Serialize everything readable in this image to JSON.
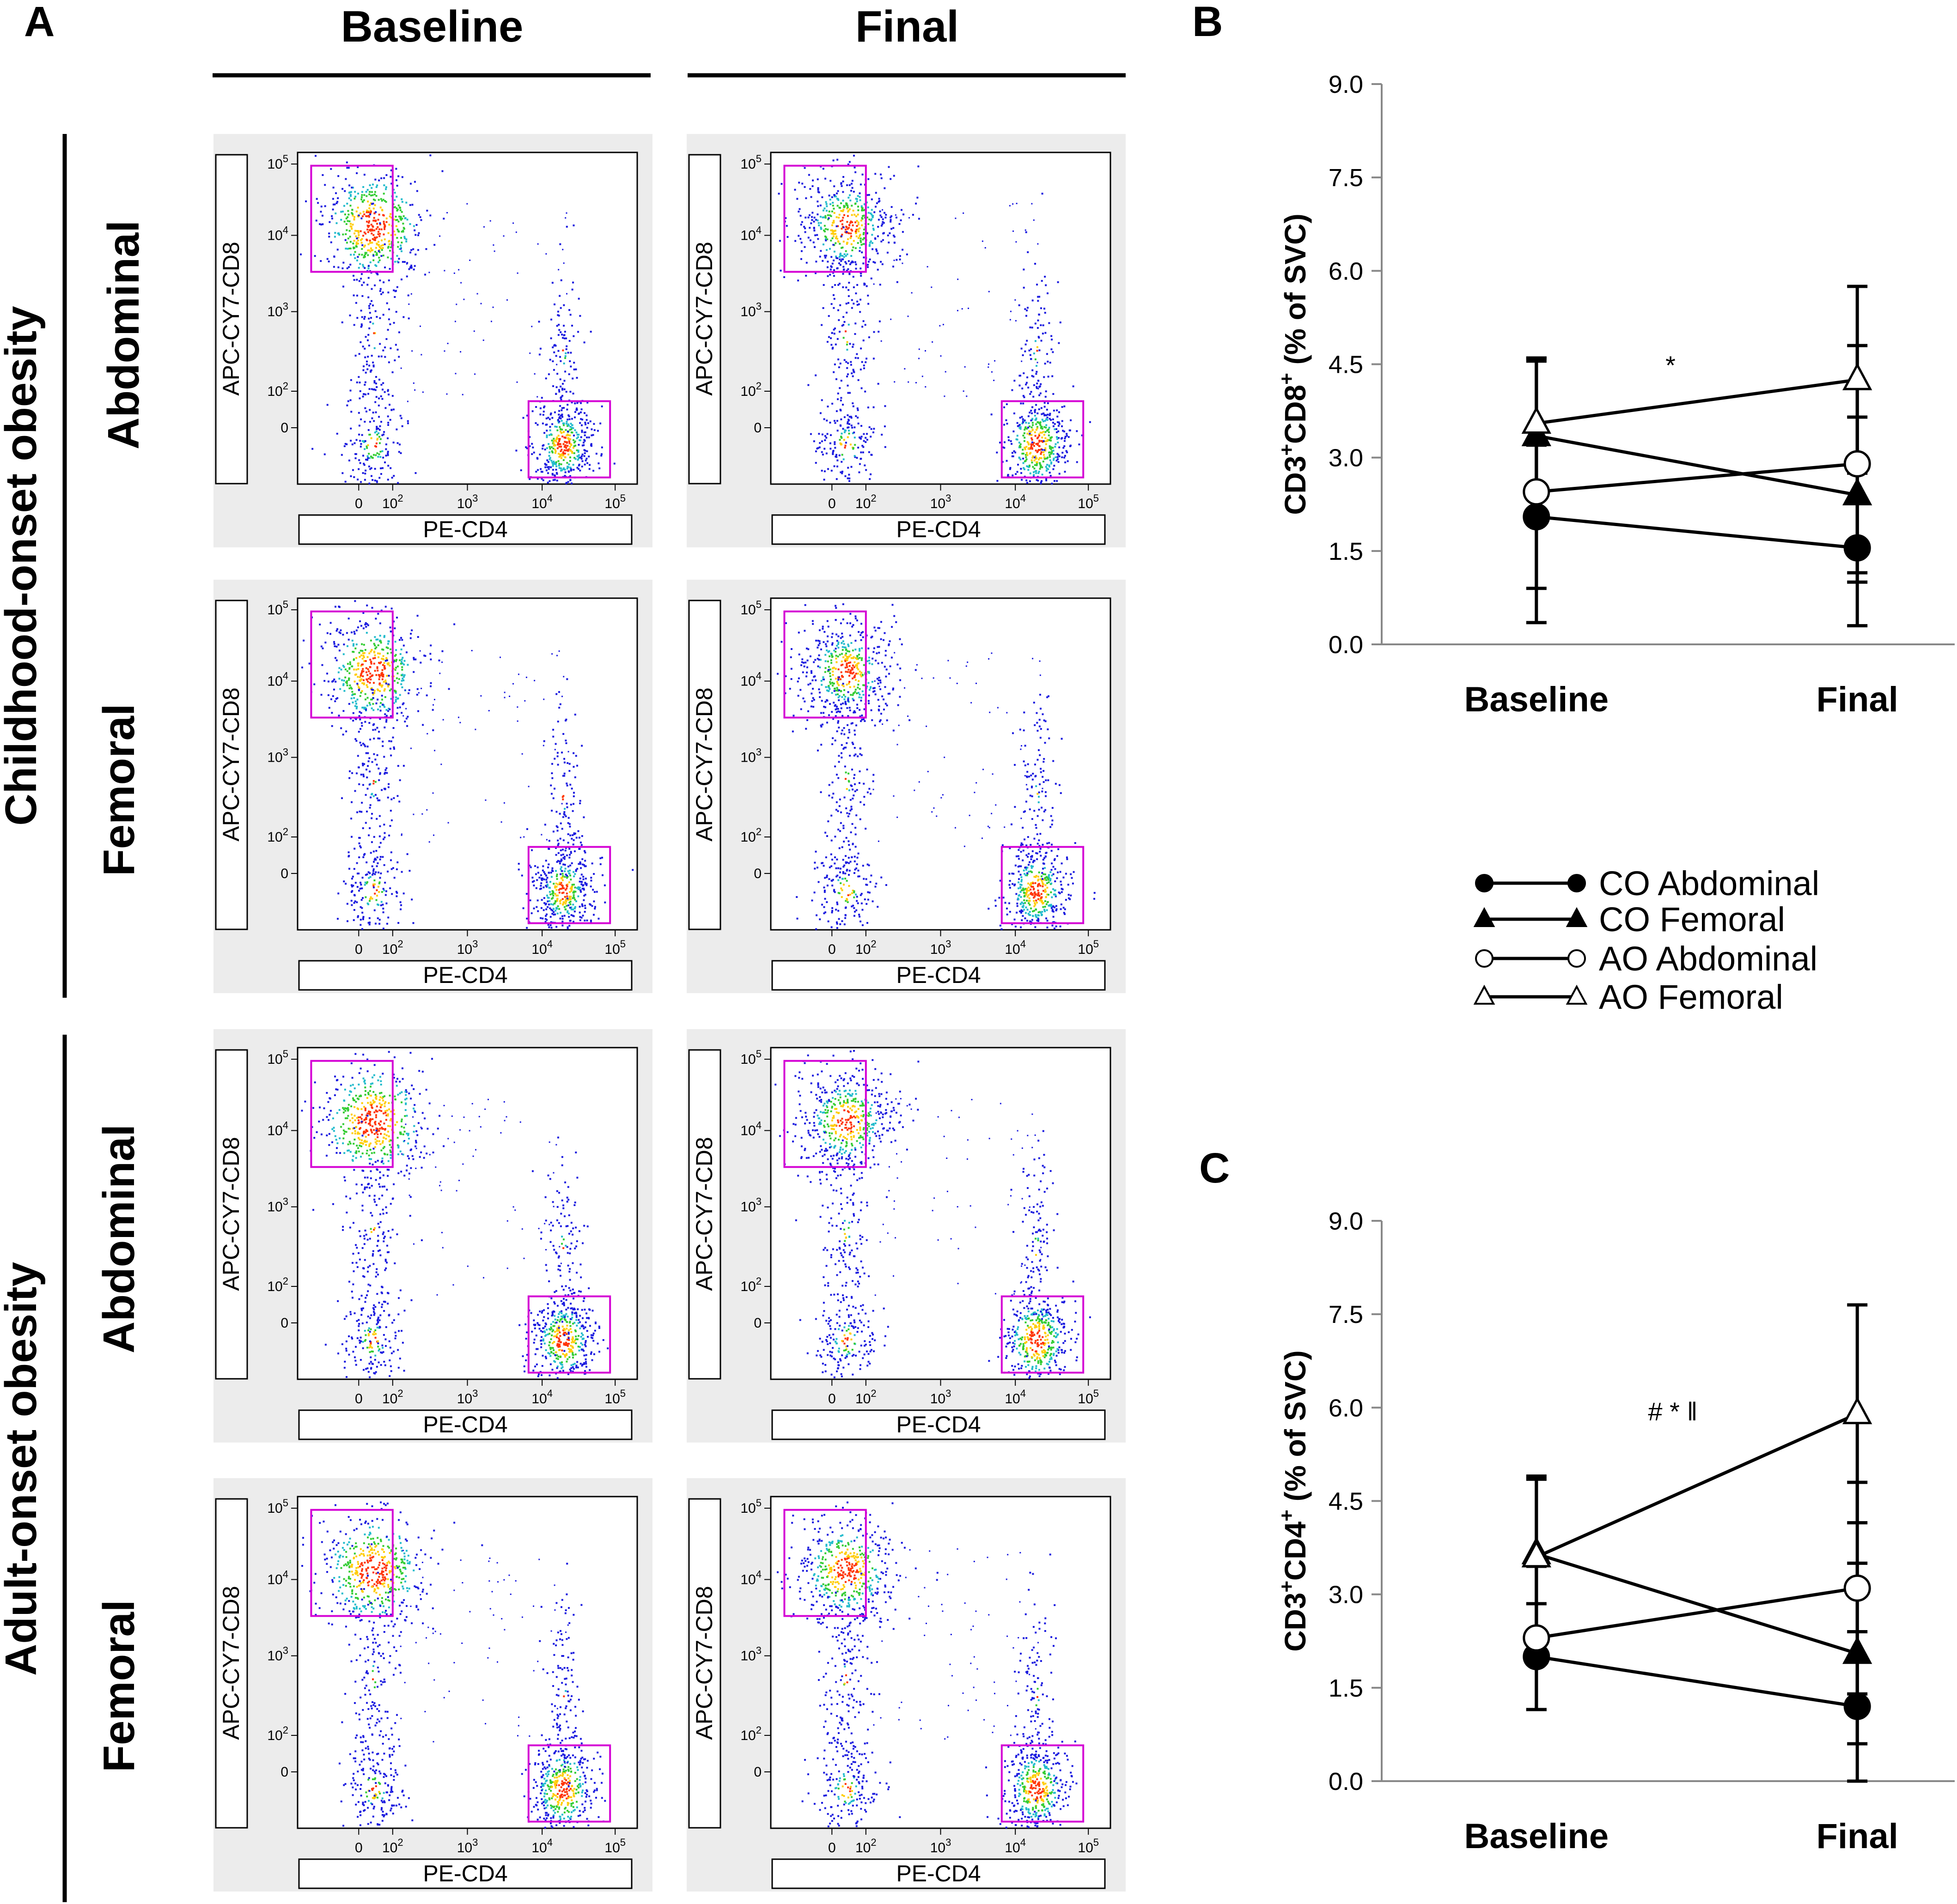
{
  "panel_letters": {
    "A": "A",
    "B": "B",
    "C": "C"
  },
  "panel_a": {
    "columns": [
      "Baseline",
      "Final"
    ],
    "groups": [
      "Childhood-onset obesity",
      "Adult-onset obesity"
    ],
    "rows": [
      "Abdominal",
      "Femoral",
      "Abdominal",
      "Femoral"
    ],
    "x_axis_label": "PE-CD4",
    "y_axis_label": "APC-CY7-CD8",
    "ticks": [
      {
        "base": "0",
        "exp": ""
      },
      {
        "base": "10",
        "exp": "2"
      },
      {
        "base": "10",
        "exp": "3"
      },
      {
        "base": "10",
        "exp": "4"
      },
      {
        "base": "10",
        "exp": "5"
      }
    ],
    "gate_color": "#d400d4"
  },
  "chart_data": [
    {
      "type": "line",
      "panel": "B",
      "title": "",
      "ylabel": "CD3+CD8+ (% of SVC)",
      "ylabel_parts": {
        "a": "CD3",
        "b": "+",
        "c": "CD8",
        "d": "+",
        "e": " (% of SVC)"
      },
      "categories": [
        "Baseline",
        "Final"
      ],
      "ylim": [
        0,
        9
      ],
      "yticks": [
        "0.0",
        "1.5",
        "3.0",
        "4.5",
        "6.0",
        "7.5",
        "9.0"
      ],
      "series": [
        {
          "name": "CO Abdominal",
          "values": [
            2.05,
            1.55
          ],
          "error": [
            1.15,
            1.25
          ]
        },
        {
          "name": "CO Femoral",
          "values": [
            3.35,
            2.4
          ],
          "error": [
            1.25,
            1.25
          ]
        },
        {
          "name": "AO Abdominal",
          "values": [
            2.45,
            2.9
          ],
          "error": [
            2.1,
            1.9
          ]
        },
        {
          "name": "AO Femoral",
          "values": [
            3.55,
            4.25
          ],
          "error": [
            1.05,
            1.5
          ]
        }
      ],
      "annotations": [
        "*"
      ]
    },
    {
      "type": "line",
      "panel": "C",
      "title": "",
      "ylabel": "CD3+CD4+ (% of SVC)",
      "ylabel_parts": {
        "a": "CD3",
        "b": "+",
        "c": "CD4",
        "d": "+",
        "e": " (% of SVC)"
      },
      "categories": [
        "Baseline",
        "Final"
      ],
      "ylim": [
        0,
        9
      ],
      "yticks": [
        "0.0",
        "1.5",
        "3.0",
        "4.5",
        "6.0",
        "7.5",
        "9.0"
      ],
      "series": [
        {
          "name": "CO Abdominal",
          "values": [
            2.0,
            1.2
          ],
          "error": [
            0.85,
            1.2
          ]
        },
        {
          "name": "CO Femoral",
          "values": [
            3.65,
            2.05
          ],
          "error": [
            1.25,
            1.45
          ]
        },
        {
          "name": "AO Abdominal",
          "values": [
            2.3,
            3.1
          ],
          "error": [
            1.15,
            1.7
          ]
        },
        {
          "name": "AO Femoral",
          "values": [
            3.6,
            5.9
          ],
          "error": [
            1.25,
            1.75
          ]
        }
      ],
      "annotations": [
        "# * ǁ"
      ]
    }
  ],
  "legend": {
    "items": [
      {
        "label": "CO Abdominal",
        "marker": "circle",
        "fill": "#000000"
      },
      {
        "label": "CO Femoral",
        "marker": "triangle",
        "fill": "#000000"
      },
      {
        "label": "AO Abdominal",
        "marker": "circle",
        "fill": "#ffffff"
      },
      {
        "label": "AO Femoral",
        "marker": "triangle",
        "fill": "#ffffff"
      }
    ]
  }
}
